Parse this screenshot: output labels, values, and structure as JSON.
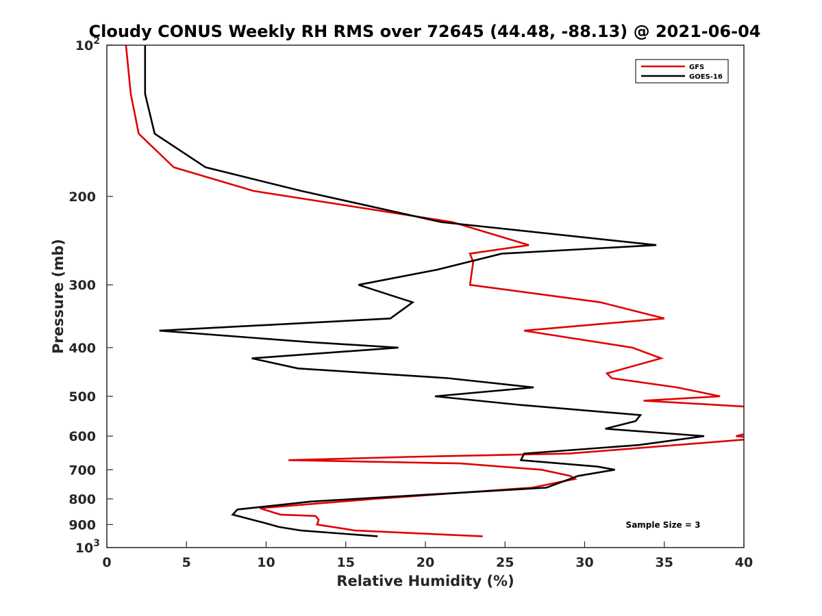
{
  "chart_data": {
    "type": "line",
    "title": "Cloudy CONUS Weekly RH RMS over 72645 (44.48, -88.13) @ 2021-06-04",
    "xlabel": "Relative Humidity (%)",
    "ylabel": "Pressure (mb)",
    "xlim": [
      0,
      40
    ],
    "ylim": [
      100,
      1000
    ],
    "yscale": "log",
    "yreversed": true,
    "grid": false,
    "legend_position": "top-right",
    "x_ticks": [
      "0",
      "5",
      "10",
      "15",
      "20",
      "25",
      "30",
      "35",
      "40"
    ],
    "y_ticks": [
      {
        "value": 100,
        "base": "10",
        "exp": "2"
      },
      {
        "value": 200,
        "label": "200"
      },
      {
        "value": 300,
        "label": "300"
      },
      {
        "value": 400,
        "label": "400"
      },
      {
        "value": 500,
        "label": "500"
      },
      {
        "value": 600,
        "label": "600"
      },
      {
        "value": 700,
        "label": "700"
      },
      {
        "value": 800,
        "label": "800"
      },
      {
        "value": 900,
        "label": "900"
      },
      {
        "value": 1000,
        "base": "10",
        "exp": "3"
      }
    ],
    "series": [
      {
        "name": "GFS",
        "color": "#e00000",
        "points": [
          [
            1.2,
            100
          ],
          [
            1.5,
            125
          ],
          [
            2.0,
            150
          ],
          [
            4.2,
            175
          ],
          [
            9.2,
            195
          ],
          [
            21.7,
            225
          ],
          [
            26.5,
            250
          ],
          [
            22.8,
            260
          ],
          [
            23.0,
            270
          ],
          [
            22.8,
            300
          ],
          [
            31.0,
            325
          ],
          [
            35.0,
            350
          ],
          [
            26.2,
            370
          ],
          [
            33.0,
            400
          ],
          [
            34.8,
            420
          ],
          [
            31.4,
            450
          ],
          [
            31.7,
            460
          ],
          [
            35.8,
            480
          ],
          [
            38.5,
            500
          ],
          [
            33.7,
            510
          ],
          [
            40.5,
            525
          ],
          [
            40.5,
            590
          ],
          [
            39.5,
            600
          ],
          [
            40.2,
            603
          ],
          [
            40.5,
            608
          ],
          [
            29.0,
            650
          ],
          [
            19.0,
            660
          ],
          [
            11.4,
            670
          ],
          [
            22.2,
            680
          ],
          [
            27.3,
            700
          ],
          [
            29.1,
            720
          ],
          [
            29.4,
            730
          ],
          [
            26.7,
            760
          ],
          [
            16.8,
            800
          ],
          [
            9.6,
            835
          ],
          [
            10.9,
            860
          ],
          [
            13.1,
            865
          ],
          [
            13.3,
            880
          ],
          [
            13.2,
            900
          ],
          [
            13.7,
            905
          ],
          [
            15.6,
            925
          ],
          [
            23.6,
            950
          ]
        ]
      },
      {
        "name": "GOES-16",
        "color": "#000000",
        "points": [
          [
            2.4,
            100
          ],
          [
            2.4,
            125
          ],
          [
            3.0,
            150
          ],
          [
            6.2,
            175
          ],
          [
            12.2,
            195
          ],
          [
            21.0,
            225
          ],
          [
            34.5,
            250
          ],
          [
            24.8,
            260
          ],
          [
            20.7,
            280
          ],
          [
            15.8,
            300
          ],
          [
            19.2,
            325
          ],
          [
            17.8,
            350
          ],
          [
            3.3,
            370
          ],
          [
            12.7,
            390
          ],
          [
            18.3,
            400
          ],
          [
            9.1,
            420
          ],
          [
            12.0,
            440
          ],
          [
            21.4,
            460
          ],
          [
            26.8,
            480
          ],
          [
            20.6,
            500
          ],
          [
            25.9,
            520
          ],
          [
            33.5,
            545
          ],
          [
            33.2,
            560
          ],
          [
            31.3,
            580
          ],
          [
            37.5,
            600
          ],
          [
            33.4,
            625
          ],
          [
            26.2,
            650
          ],
          [
            26.0,
            670
          ],
          [
            30.8,
            690
          ],
          [
            31.9,
            700
          ],
          [
            29.6,
            720
          ],
          [
            27.6,
            760
          ],
          [
            18.5,
            790
          ],
          [
            12.8,
            810
          ],
          [
            8.2,
            840
          ],
          [
            7.9,
            860
          ],
          [
            10.0,
            895
          ],
          [
            10.8,
            910
          ],
          [
            12.2,
            925
          ],
          [
            17.0,
            950
          ]
        ]
      }
    ],
    "annotation": "Sample Size = 3"
  }
}
